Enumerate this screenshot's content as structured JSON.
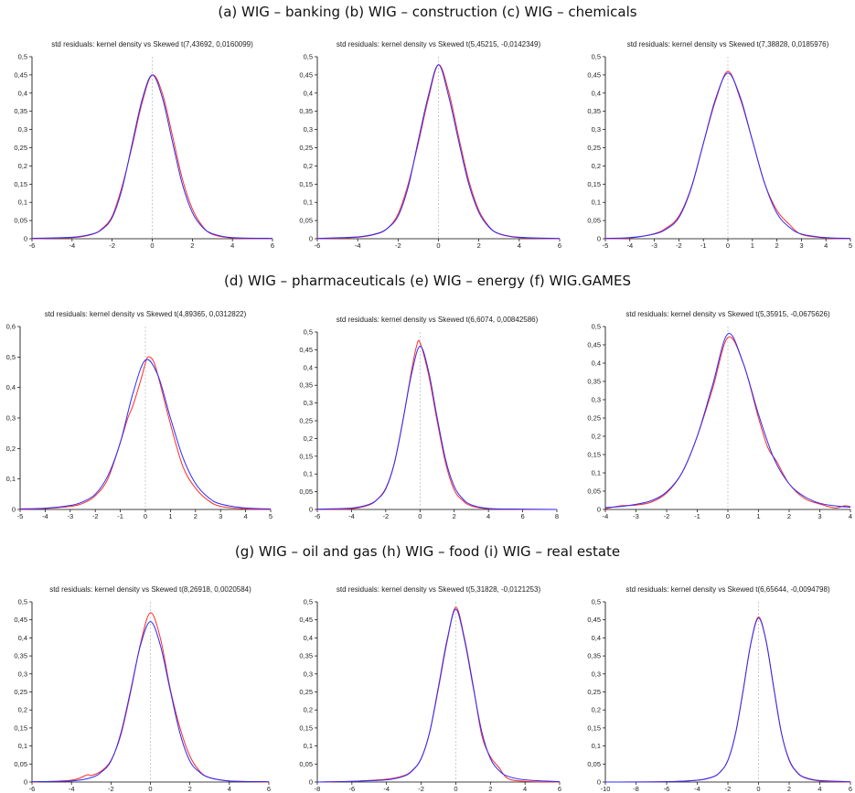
{
  "captions": [
    "(a)  WIG – banking  (b) WIG – construction  (c) WIG – chemicals",
    "(d)  WIG – pharmaceuticals  (e)  WIG – energy  (f) WIG.GAMES",
    "(g)  WIG – oil and gas  (h)  WIG – food  (i)  WIG – real estate"
  ],
  "colors": {
    "kernel": "#ff2a2a",
    "skewed": "#2b2bff",
    "axis": "#000000",
    "zero_line": "#aaaaaa"
  },
  "chart_data": [
    {
      "type": "line",
      "title": "std residuals: kernel density vs Skewed t(7,43692, 0,0160099)",
      "xlim": [
        -6,
        6
      ],
      "ylim": [
        0,
        0.5
      ],
      "x_ticks": [
        "-6",
        "-4",
        "-2",
        "0",
        "2",
        "4",
        "6"
      ],
      "y_ticks": [
        "0",
        "0,05",
        "0,1",
        "0,15",
        "0,2",
        "0,25",
        "0,3",
        "0,35",
        "0,4",
        "0,45",
        "0,5"
      ],
      "grid": false,
      "peak": 0.45,
      "nu": 7.43692,
      "skew": 0.0160099,
      "series": [
        {
          "kind": "kernel",
          "x": [
            -6,
            -4,
            -3,
            -2.5,
            -2,
            -1.5,
            -1,
            -0.5,
            0,
            0.5,
            1,
            1.5,
            2,
            2.5,
            3,
            4,
            6
          ],
          "values": [
            0,
            0.003,
            0.012,
            0.028,
            0.062,
            0.145,
            0.255,
            0.375,
            0.45,
            0.4,
            0.285,
            0.165,
            0.082,
            0.035,
            0.012,
            0.002,
            0
          ]
        },
        {
          "kind": "skewed",
          "x": [
            -6,
            -4,
            -3,
            -2.5,
            -2,
            -1.5,
            -1,
            -0.5,
            0,
            0.5,
            1,
            1.5,
            2,
            2.5,
            3,
            4,
            6
          ],
          "values": [
            0.001,
            0.004,
            0.013,
            0.026,
            0.058,
            0.138,
            0.262,
            0.383,
            0.45,
            0.388,
            0.268,
            0.15,
            0.072,
            0.032,
            0.014,
            0.003,
            0.001
          ]
        }
      ]
    },
    {
      "type": "line",
      "title": "std residuals: kernel density vs Skewed t(5,45215, -0,0142349)",
      "xlim": [
        -6,
        6
      ],
      "ylim": [
        0,
        0.5
      ],
      "x_ticks": [
        "-6",
        "-4",
        "-2",
        "0",
        "2",
        "4",
        "6"
      ],
      "y_ticks": [
        "0",
        "0,05",
        "0,1",
        "0,15",
        "0,2",
        "0,25",
        "0,3",
        "0,35",
        "0,4",
        "0,45",
        "0,5"
      ],
      "grid": false,
      "peak": 0.478,
      "nu": 5.45215,
      "skew": -0.0142349,
      "series": [
        {
          "kind": "kernel",
          "x": [
            -6,
            -4,
            -3,
            -2.5,
            -2,
            -1.5,
            -1,
            -0.5,
            0,
            0.5,
            1,
            1.5,
            2,
            2.5,
            3,
            4,
            6
          ],
          "values": [
            0,
            0.004,
            0.014,
            0.03,
            0.068,
            0.15,
            0.262,
            0.385,
            0.478,
            0.405,
            0.28,
            0.16,
            0.078,
            0.034,
            0.013,
            0.003,
            0
          ]
        },
        {
          "kind": "skewed",
          "x": [
            -6,
            -4,
            -3,
            -2.5,
            -2,
            -1.5,
            -1,
            -0.5,
            0,
            0.5,
            1,
            1.5,
            2,
            2.5,
            3,
            4,
            6
          ],
          "values": [
            0.001,
            0.005,
            0.015,
            0.03,
            0.062,
            0.142,
            0.27,
            0.393,
            0.478,
            0.392,
            0.268,
            0.15,
            0.072,
            0.032,
            0.014,
            0.004,
            0.001
          ]
        }
      ]
    },
    {
      "type": "line",
      "title": "std residuals: kernel density vs Skewed t(7,38828, 0,0185976)",
      "xlim": [
        -5,
        5
      ],
      "ylim": [
        0,
        0.5
      ],
      "x_ticks": [
        "-5",
        "-4",
        "-3",
        "-2",
        "-1",
        "0",
        "1",
        "2",
        "3",
        "4",
        "5"
      ],
      "y_ticks": [
        "0",
        "0,05",
        "0,1",
        "0,15",
        "0,2",
        "0,25",
        "0,3",
        "0,35",
        "0,4",
        "0,45",
        "0,5"
      ],
      "grid": false,
      "peak": 0.455,
      "nu": 7.38828,
      "skew": 0.0185976,
      "series": [
        {
          "kind": "kernel",
          "x": [
            -5,
            -4,
            -3,
            -2.5,
            -2,
            -1.5,
            -1,
            -0.5,
            0,
            0.5,
            1,
            1.5,
            2,
            2.5,
            3,
            4,
            5
          ],
          "values": [
            0,
            0.002,
            0.014,
            0.03,
            0.062,
            0.14,
            0.262,
            0.38,
            0.46,
            0.385,
            0.27,
            0.152,
            0.078,
            0.04,
            0.012,
            0.002,
            0
          ]
        },
        {
          "kind": "skewed",
          "x": [
            -5,
            -4,
            -3,
            -2.5,
            -2,
            -1.5,
            -1,
            -0.5,
            0,
            0.5,
            1,
            1.5,
            2,
            2.5,
            3,
            4,
            5
          ],
          "values": [
            0.001,
            0.003,
            0.013,
            0.027,
            0.058,
            0.138,
            0.262,
            0.385,
            0.455,
            0.39,
            0.27,
            0.152,
            0.07,
            0.032,
            0.013,
            0.003,
            0.001
          ]
        }
      ]
    },
    {
      "type": "line",
      "title": "std residuals: kernel density vs Skewed t(4,89365, 0,0312822)",
      "xlim": [
        -5,
        5
      ],
      "ylim": [
        0,
        0.6
      ],
      "x_ticks": [
        "-5",
        "-4",
        "-3",
        "-2",
        "-1",
        "0",
        "1",
        "2",
        "3",
        "4",
        "5"
      ],
      "y_ticks": [
        "0",
        "0,1",
        "0,2",
        "0,3",
        "0,4",
        "0,5",
        "0,6"
      ],
      "grid": false,
      "peak": 0.49,
      "nu": 4.89365,
      "skew": 0.0312822,
      "series": [
        {
          "kind": "kernel",
          "x": [
            -5,
            -4,
            -3,
            -2.5,
            -2,
            -1.5,
            -1,
            -0.7,
            -0.5,
            -0.2,
            0,
            0.1,
            0.3,
            0.5,
            1,
            1.5,
            2,
            2.5,
            3,
            4,
            5
          ],
          "values": [
            0,
            0.003,
            0.01,
            0.02,
            0.045,
            0.1,
            0.22,
            0.3,
            0.34,
            0.42,
            0.48,
            0.5,
            0.49,
            0.44,
            0.28,
            0.14,
            0.07,
            0.03,
            0.01,
            0.002,
            0
          ]
        },
        {
          "kind": "skewed",
          "x": [
            -5,
            -4,
            -3,
            -2.5,
            -2,
            -1.5,
            -1,
            -0.5,
            0,
            0.5,
            1,
            1.5,
            2,
            2.5,
            3,
            4,
            5
          ],
          "values": [
            0.002,
            0.004,
            0.013,
            0.025,
            0.05,
            0.11,
            0.22,
            0.38,
            0.49,
            0.44,
            0.3,
            0.17,
            0.085,
            0.04,
            0.018,
            0.005,
            0.002
          ]
        }
      ]
    },
    {
      "type": "line",
      "title": "std residuals: kernel density vs Skewed t(6,6074, 0,00842586)",
      "xlim": [
        -6,
        8
      ],
      "ylim": [
        0,
        0.5
      ],
      "x_ticks": [
        "-6",
        "-4",
        "-2",
        "0",
        "2",
        "4",
        "6",
        "8"
      ],
      "y_ticks": [
        "0",
        "0,05",
        "0,1",
        "0,15",
        "0,2",
        "0,25",
        "0,3",
        "0,35",
        "0,4",
        "0,45",
        "0,5"
      ],
      "grid": false,
      "peak": 0.46,
      "nu": 6.6074,
      "skew": 0.00842586,
      "series": [
        {
          "kind": "kernel",
          "x": [
            -6,
            -4,
            -3,
            -2.5,
            -2,
            -1.5,
            -1,
            -0.5,
            -0.2,
            0,
            0.5,
            1,
            1.5,
            2,
            2.5,
            3,
            4,
            6,
            8
          ],
          "values": [
            0,
            0.002,
            0.012,
            0.028,
            0.06,
            0.13,
            0.25,
            0.39,
            0.46,
            0.47,
            0.38,
            0.25,
            0.13,
            0.055,
            0.025,
            0.01,
            0.002,
            0,
            0
          ]
        },
        {
          "kind": "skewed",
          "x": [
            -6,
            -4,
            -3,
            -2.5,
            -2,
            -1.5,
            -1,
            -0.5,
            0,
            0.5,
            1,
            1.5,
            2,
            2.5,
            3,
            4,
            6,
            8
          ],
          "values": [
            0.001,
            0.004,
            0.014,
            0.028,
            0.058,
            0.13,
            0.25,
            0.38,
            0.46,
            0.39,
            0.26,
            0.14,
            0.065,
            0.03,
            0.013,
            0.003,
            0.001,
            0
          ]
        }
      ]
    },
    {
      "type": "line",
      "title": "std residuals: kernel density vs Skewed t(5,35915, -0,0675626)",
      "xlim": [
        -4,
        4
      ],
      "ylim": [
        0,
        0.5
      ],
      "x_ticks": [
        "-4",
        "-3",
        "-2",
        "-1",
        "0",
        "1",
        "2",
        "3",
        "4"
      ],
      "y_ticks": [
        "0",
        "0,05",
        "0,1",
        "0,15",
        "0,2",
        "0,25",
        "0,3",
        "0,35",
        "0,4",
        "0,45",
        "0,5"
      ],
      "grid": false,
      "peak": 0.48,
      "nu": 5.35915,
      "skew": -0.0675626,
      "series": [
        {
          "kind": "kernel",
          "x": [
            -4,
            -3.5,
            -3,
            -2.5,
            -2,
            -1.5,
            -1,
            -0.5,
            0,
            0.5,
            1,
            1.3,
            1.6,
            2,
            2.5,
            3,
            3.5,
            3.8,
            4
          ],
          "values": [
            0.002,
            0.01,
            0.012,
            0.02,
            0.045,
            0.1,
            0.2,
            0.33,
            0.47,
            0.4,
            0.25,
            0.17,
            0.13,
            0.07,
            0.03,
            0.015,
            0.004,
            0.01,
            0.008
          ]
        },
        {
          "kind": "skewed",
          "x": [
            -4,
            -3.5,
            -3,
            -2.5,
            -2,
            -1.5,
            -1,
            -0.5,
            0,
            0.5,
            1,
            1.5,
            2,
            2.5,
            3,
            3.5,
            4
          ],
          "values": [
            0.005,
            0.008,
            0.014,
            0.024,
            0.048,
            0.1,
            0.2,
            0.34,
            0.48,
            0.4,
            0.26,
            0.14,
            0.07,
            0.035,
            0.017,
            0.01,
            0.006
          ]
        }
      ]
    },
    {
      "type": "line",
      "title": "std residuals: kernel density vs Skewed t(8,26918, 0,0020584)",
      "xlim": [
        -6,
        6
      ],
      "ylim": [
        0,
        0.5
      ],
      "x_ticks": [
        "-6",
        "-4",
        "-2",
        "0",
        "2",
        "4",
        "6"
      ],
      "y_ticks": [
        "0",
        "0,05",
        "0,1",
        "0,15",
        "0,2",
        "0,25",
        "0,3",
        "0,35",
        "0,4",
        "0,45",
        "0,5"
      ],
      "grid": false,
      "peak": 0.445,
      "nu": 8.26918,
      "skew": 0.0020584,
      "series": [
        {
          "kind": "kernel",
          "x": [
            -6,
            -4,
            -3.2,
            -3,
            -2.5,
            -2,
            -1.5,
            -1,
            -0.5,
            0,
            0.5,
            1,
            1.5,
            2,
            2.5,
            3,
            4,
            6
          ],
          "values": [
            0,
            0.005,
            0.02,
            0.018,
            0.03,
            0.06,
            0.13,
            0.25,
            0.385,
            0.47,
            0.4,
            0.26,
            0.15,
            0.072,
            0.03,
            0.012,
            0.003,
            0
          ]
        },
        {
          "kind": "skewed",
          "x": [
            -6,
            -4,
            -3,
            -2.5,
            -2,
            -1.5,
            -1,
            -0.5,
            0,
            0.5,
            1,
            1.5,
            2,
            2.5,
            3,
            4,
            6
          ],
          "values": [
            0.001,
            0.003,
            0.012,
            0.027,
            0.058,
            0.135,
            0.255,
            0.38,
            0.445,
            0.38,
            0.255,
            0.135,
            0.058,
            0.027,
            0.012,
            0.003,
            0.001
          ]
        }
      ]
    },
    {
      "type": "line",
      "title": "std residuals: kernel density vs Skewed t(5,31828, -0,0121253)",
      "xlim": [
        -8,
        6
      ],
      "ylim": [
        0,
        0.5
      ],
      "x_ticks": [
        "-8",
        "-6",
        "-4",
        "-2",
        "0",
        "2",
        "4",
        "6"
      ],
      "y_ticks": [
        "0",
        "0,05",
        "0,1",
        "0,15",
        "0,2",
        "0,25",
        "0,3",
        "0,35",
        "0,4",
        "0,45",
        "0,5"
      ],
      "grid": false,
      "peak": 0.48,
      "nu": 5.31828,
      "skew": -0.0121253,
      "series": [
        {
          "kind": "kernel",
          "x": [
            -8,
            -6,
            -4,
            -3,
            -2.5,
            -2,
            -1.5,
            -1,
            -0.5,
            0,
            0.5,
            1,
            1.5,
            2,
            2.5,
            3,
            4,
            6
          ],
          "values": [
            0,
            0.002,
            0.008,
            0.018,
            0.033,
            0.065,
            0.14,
            0.26,
            0.39,
            0.485,
            0.4,
            0.27,
            0.13,
            0.07,
            0.04,
            0.01,
            0.002,
            0
          ]
        },
        {
          "kind": "skewed",
          "x": [
            -8,
            -6,
            -4,
            -3,
            -2.5,
            -2,
            -1.5,
            -1,
            -0.5,
            0,
            0.5,
            1,
            1.5,
            2,
            2.5,
            3,
            4,
            6
          ],
          "values": [
            0,
            0.002,
            0.006,
            0.016,
            0.032,
            0.065,
            0.14,
            0.265,
            0.395,
            0.48,
            0.395,
            0.265,
            0.14,
            0.065,
            0.032,
            0.016,
            0.006,
            0.001
          ]
        }
      ]
    },
    {
      "type": "line",
      "title": "std residuals: kernel density vs Skewed t(6,65644, -0,0094798)",
      "xlim": [
        -10,
        6
      ],
      "ylim": [
        0,
        0.5
      ],
      "x_ticks": [
        "-10",
        "-8",
        "-6",
        "-4",
        "-2",
        "0",
        "2",
        "4",
        "6"
      ],
      "y_ticks": [
        "0",
        "0,05",
        "0,1",
        "0,15",
        "0,2",
        "0,25",
        "0,3",
        "0,35",
        "0,4",
        "0,45",
        "0,5"
      ],
      "grid": false,
      "peak": 0.455,
      "nu": 6.65644,
      "skew": -0.0094798,
      "series": [
        {
          "kind": "kernel",
          "x": [
            -10,
            -6,
            -4,
            -3,
            -2.5,
            -2,
            -1.5,
            -1,
            -0.5,
            0,
            0.5,
            1,
            1.5,
            2,
            2.5,
            3,
            4,
            6
          ],
          "values": [
            0,
            0.001,
            0.005,
            0.014,
            0.028,
            0.06,
            0.135,
            0.255,
            0.385,
            0.458,
            0.39,
            0.26,
            0.135,
            0.06,
            0.027,
            0.012,
            0.003,
            0
          ]
        },
        {
          "kind": "skewed",
          "x": [
            -10,
            -6,
            -4,
            -3,
            -2.5,
            -2,
            -1.5,
            -1,
            -0.5,
            0,
            0.5,
            1,
            1.5,
            2,
            2.5,
            3,
            4,
            6
          ],
          "values": [
            0,
            0.001,
            0.005,
            0.014,
            0.028,
            0.06,
            0.135,
            0.255,
            0.385,
            0.455,
            0.39,
            0.26,
            0.135,
            0.062,
            0.028,
            0.013,
            0.004,
            0.001
          ]
        }
      ]
    }
  ]
}
